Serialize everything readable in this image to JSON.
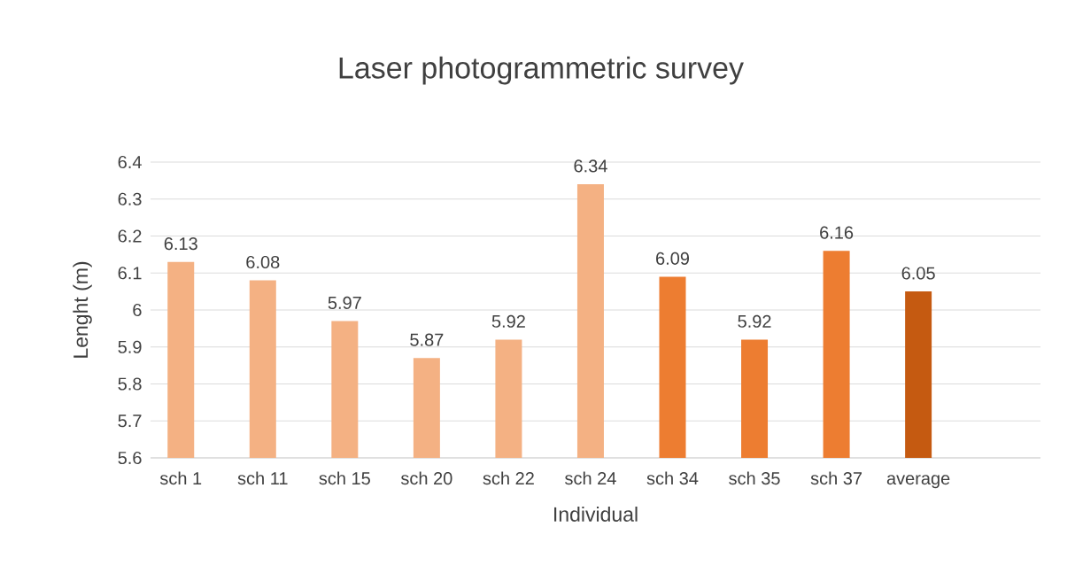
{
  "chart_data": {
    "type": "bar",
    "title": "Laser photogrammetric survey",
    "xlabel": "Individual",
    "ylabel": "Lenght (m)",
    "categories": [
      "sch 1",
      "sch 11",
      "sch 15",
      "sch 20",
      "sch 22",
      "sch 24",
      "sch 34",
      "sch 35",
      "sch 37",
      "average"
    ],
    "values": [
      6.13,
      6.08,
      5.97,
      5.87,
      5.92,
      6.34,
      6.09,
      5.92,
      6.16,
      6.05
    ],
    "value_labels": [
      "6.13",
      "6.08",
      "5.97",
      "5.87",
      "5.92",
      "6.34",
      "6.09",
      "5.92",
      "6.16",
      "6.05"
    ],
    "colors": [
      "#f4b183",
      "#f4b183",
      "#f4b183",
      "#f4b183",
      "#f4b183",
      "#f4b183",
      "#ed7d31",
      "#ed7d31",
      "#ed7d31",
      "#c55a11"
    ],
    "ylim": [
      5.6,
      6.4
    ],
    "yticks": [
      5.6,
      5.7,
      5.8,
      5.9,
      6,
      6.1,
      6.2,
      6.3,
      6.4
    ],
    "grid": "y"
  }
}
